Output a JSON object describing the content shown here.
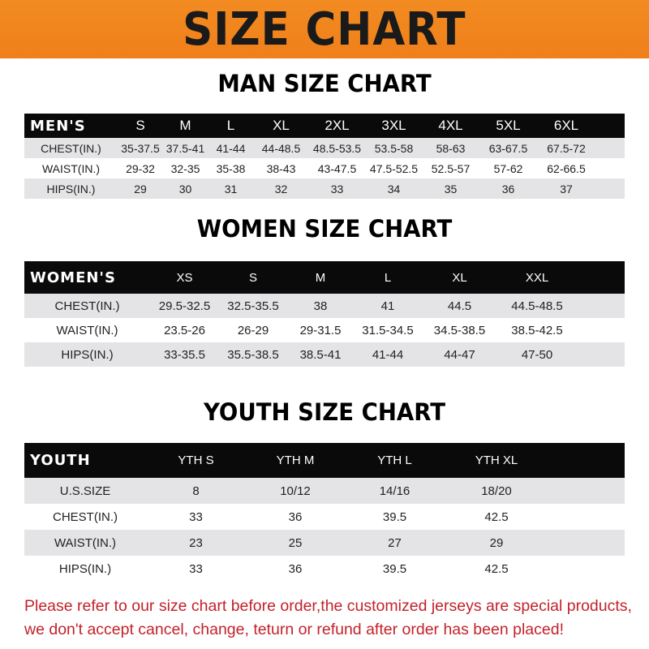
{
  "banner": {
    "title": "SIZE CHART",
    "color": "#f08a24"
  },
  "men": {
    "title": "MAN SIZE CHART",
    "header": [
      "MEN'S",
      "S",
      "M",
      "L",
      "XL",
      "2XL",
      "3XL",
      "4XL",
      "5XL",
      "6XL"
    ],
    "rows": [
      [
        "CHEST(IN.)",
        "35-37.5",
        "37.5-41",
        "41-44",
        "44-48.5",
        "48.5-53.5",
        "53.5-58",
        "58-63",
        "63-67.5",
        "67.5-72"
      ],
      [
        "WAIST(IN.)",
        "29-32",
        "32-35",
        "35-38",
        "38-43",
        "43-47.5",
        "47.5-52.5",
        "52.5-57",
        "57-62",
        "62-66.5"
      ],
      [
        "HIPS(IN.)",
        "29",
        "30",
        "31",
        "32",
        "33",
        "34",
        "35",
        "36",
        "37"
      ]
    ]
  },
  "women": {
    "title": "WOMEN SIZE CHART",
    "header": [
      "WOMEN'S",
      "XS",
      "S",
      "M",
      "L",
      "XL",
      "XXL"
    ],
    "rows": [
      [
        "CHEST(IN.)",
        "29.5-32.5",
        "32.5-35.5",
        "38",
        "41",
        "44.5",
        "44.5-48.5"
      ],
      [
        "WAIST(IN.)",
        "23.5-26",
        "26-29",
        "29-31.5",
        "31.5-34.5",
        "34.5-38.5",
        "38.5-42.5"
      ],
      [
        "HIPS(IN.)",
        "33-35.5",
        "35.5-38.5",
        "38.5-41",
        "41-44",
        "44-47",
        "47-50"
      ]
    ]
  },
  "youth": {
    "title": "YOUTH SIZE CHART",
    "header": [
      "YOUTH",
      "YTH S",
      "YTH M",
      "YTH L",
      "YTH XL"
    ],
    "rows": [
      [
        "U.S.SIZE",
        "8",
        "10/12",
        "14/16",
        "18/20"
      ],
      [
        "CHEST(IN.)",
        "33",
        "36",
        "39.5",
        "42.5"
      ],
      [
        "WAIST(IN.)",
        "23",
        "25",
        "27",
        "29"
      ],
      [
        "HIPS(IN.)",
        "33",
        "36",
        "39.5",
        "42.5"
      ]
    ]
  },
  "note": {
    "line1": "Please refer to our size chart before order,the customized jerseys are special products,",
    "line2": "we don't accept cancel, change, teturn or refund after order has been placed!",
    "color": "#c3222a"
  }
}
